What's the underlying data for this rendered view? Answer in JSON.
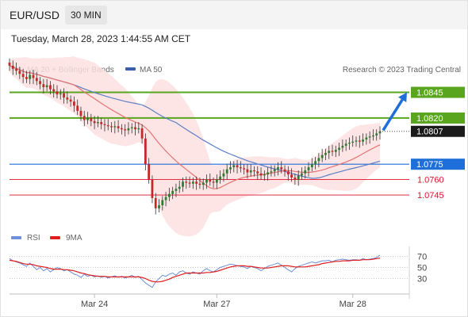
{
  "header": {
    "symbol": "EUR/USD",
    "interval": "30 MIN",
    "timestamp": "Tuesday, March 28, 2023 1:44:55 AM CET"
  },
  "legend": {
    "ma20_label": "MA 20 + Bollinger Bands",
    "ma50_label": "MA 50",
    "credit": "Research © 2023 Trading Central",
    "rsi_label": "RSI",
    "nine_ma_label": "9MA"
  },
  "colors": {
    "candle_up": "#2e7d32",
    "candle_down": "#c62828",
    "ma20": "#e57373",
    "ma50": "#5c7fc4",
    "bollinger_fill": "#fde0e0",
    "resistance": "#5aa51e",
    "pivot": "#1e6fd9",
    "support": "#e0102a",
    "rsi": "#6f90d8",
    "nine_ma": "#e01e1e"
  },
  "chart_data": [
    {
      "type": "candlestick",
      "x_ticks": [
        "Mar 24",
        "Mar 27",
        "Mar 28"
      ],
      "y_range": [
        1.0718,
        1.0857
      ],
      "current_price": "1.0807",
      "levels": [
        {
          "label": "1.0845",
          "value": 1.0845,
          "kind": "resistance"
        },
        {
          "label": "1.0820",
          "value": 1.082,
          "kind": "resistance"
        },
        {
          "label": "1.0775",
          "value": 1.0775,
          "kind": "pivot"
        },
        {
          "label": "1.0760",
          "value": 1.076,
          "kind": "support"
        },
        {
          "label": "1.0745",
          "value": 1.0745,
          "kind": "support"
        }
      ],
      "projection": {
        "from": 1.0808,
        "to": 1.0845
      },
      "close": [
        1.0871,
        1.0868,
        1.0866,
        1.0863,
        1.086,
        1.0858,
        1.0862,
        1.0859,
        1.0856,
        1.0853,
        1.085,
        1.0852,
        1.0848,
        1.0846,
        1.0843,
        1.0844,
        1.084,
        1.0838,
        1.0836,
        1.0832,
        1.0827,
        1.0822,
        1.0818,
        1.082,
        1.0817,
        1.0815,
        1.0816,
        1.0814,
        1.0813,
        1.0812,
        1.0811,
        1.0812,
        1.081,
        1.0809,
        1.0808,
        1.081,
        1.0811,
        1.0809,
        1.081,
        1.08,
        1.0775,
        1.076,
        1.0742,
        1.0732,
        1.0735,
        1.074,
        1.0743,
        1.0746,
        1.0749,
        1.0751,
        1.0753,
        1.0758,
        1.0757,
        1.0756,
        1.0758,
        1.0756,
        1.0755,
        1.0757,
        1.076,
        1.0758,
        1.0757,
        1.076,
        1.0763,
        1.0766,
        1.077,
        1.0772,
        1.0774,
        1.0772,
        1.0771,
        1.077,
        1.0767,
        1.0769,
        1.0768,
        1.0766,
        1.0764,
        1.0765,
        1.0767,
        1.0768,
        1.077,
        1.0772,
        1.077,
        1.0768,
        1.0765,
        1.0762,
        1.076,
        1.0764,
        1.0766,
        1.0769,
        1.0772,
        1.0775,
        1.0778,
        1.0781,
        1.0784,
        1.0786,
        1.0788,
        1.0787,
        1.0789,
        1.0791,
        1.0793,
        1.0795,
        1.0796,
        1.0797,
        1.0798,
        1.0797,
        1.0799,
        1.0801,
        1.0802,
        1.0803,
        1.0805,
        1.0807
      ]
    },
    {
      "type": "line",
      "title": "RSI",
      "y_ticks": [
        30,
        50,
        70
      ],
      "y_range": [
        5,
        85
      ],
      "series": [
        {
          "name": "RSI",
          "values": [
            66,
            62,
            60,
            58,
            55,
            52,
            58,
            52,
            46,
            50,
            44,
            48,
            42,
            46,
            50,
            48,
            44,
            46,
            42,
            38,
            36,
            32,
            38,
            34,
            36,
            33,
            35,
            32,
            34,
            31,
            33,
            35,
            32,
            34,
            31,
            33,
            36,
            32,
            34,
            28,
            22,
            18,
            14,
            24,
            30,
            36,
            34,
            38,
            40,
            36,
            42,
            44,
            40,
            38,
            42,
            40,
            38,
            44,
            48,
            44,
            42,
            46,
            50,
            52,
            54,
            56,
            55,
            53,
            52,
            51,
            48,
            52,
            50,
            48,
            44,
            48,
            52,
            54,
            56,
            58,
            54,
            50,
            46,
            42,
            48,
            52,
            54,
            56,
            58,
            60,
            58,
            60,
            62,
            62,
            63,
            60,
            63,
            64,
            65,
            64,
            63,
            64,
            64,
            63,
            66,
            64,
            65,
            66,
            68,
            72
          ]
        },
        {
          "name": "9MA",
          "values": [
            63,
            62,
            61,
            59,
            57,
            56,
            56,
            55,
            53,
            52,
            51,
            50,
            48,
            47,
            47,
            47,
            46,
            46,
            45,
            44,
            42,
            40,
            39,
            37,
            36,
            35,
            34,
            34,
            34,
            33,
            33,
            33,
            33,
            33,
            33,
            33,
            33,
            33,
            33,
            32,
            30,
            27,
            25,
            24,
            24,
            25,
            27,
            29,
            32,
            34,
            36,
            38,
            40,
            40,
            40,
            40,
            40,
            40,
            41,
            41,
            42,
            43,
            45,
            47,
            49,
            51,
            52,
            53,
            53,
            53,
            52,
            52,
            51,
            50,
            49,
            49,
            49,
            50,
            51,
            52,
            53,
            53,
            53,
            52,
            51,
            51,
            51,
            51,
            52,
            53,
            54,
            55,
            57,
            58,
            59,
            60,
            61,
            61,
            62,
            62,
            62,
            63,
            63,
            63,
            64,
            64,
            64,
            65,
            66,
            67
          ]
        }
      ]
    }
  ]
}
